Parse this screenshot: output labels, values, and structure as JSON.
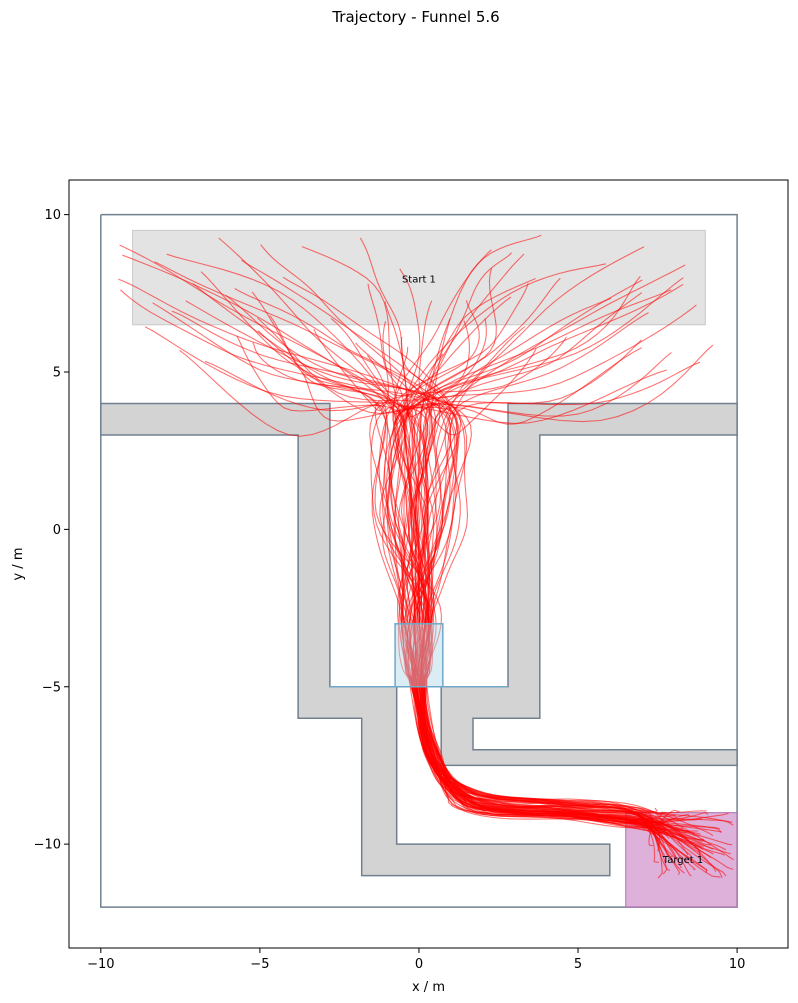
{
  "chart_data": {
    "type": "line",
    "title": "Trajectory - Funnel 5.6",
    "xlabel": "x / m",
    "ylabel": "y / m",
    "xlim": [
      -11.0,
      11.6
    ],
    "ylim": [
      -13.3,
      11.1
    ],
    "xticks": [
      -10,
      -5,
      0,
      5,
      10
    ],
    "yticks": [
      -10,
      -5,
      0,
      5,
      10
    ],
    "xtick_labels": [
      "−10",
      "−5",
      "0",
      "5",
      "10"
    ],
    "ytick_labels": [
      "−10",
      "−5",
      "0",
      "5",
      "10"
    ],
    "grid": false,
    "colors": {
      "walls": "#d3d3d3",
      "wall_edges": "#708090",
      "start_area": "#d9d9d9",
      "target_area": "#c77dc0",
      "funnel": "#add8e6",
      "funnel_edge": "#6fa8c8",
      "trajectories": "#ff0000",
      "outer_boundary": "#708090"
    },
    "outer_boundary": [
      [
        -10,
        10
      ],
      [
        10,
        10
      ],
      [
        10,
        -12
      ],
      [
        -10,
        -12
      ],
      [
        -10,
        10
      ]
    ],
    "walls": [
      [
        [
          -10,
          4
        ],
        [
          -2.8,
          4
        ],
        [
          -2.8,
          -5
        ],
        [
          -0.7,
          -5
        ],
        [
          -0.7,
          -10
        ],
        [
          6,
          -10
        ],
        [
          6,
          -11
        ],
        [
          -1.8,
          -11
        ],
        [
          -1.8,
          -6
        ],
        [
          -3.8,
          -6
        ],
        [
          -3.8,
          3
        ],
        [
          -10,
          3
        ]
      ],
      [
        [
          2.8,
          4
        ],
        [
          10,
          4
        ],
        [
          10,
          3
        ],
        [
          3.8,
          3
        ],
        [
          3.8,
          -6
        ],
        [
          1.7,
          -6
        ],
        [
          1.7,
          -7
        ],
        [
          10,
          -7
        ],
        [
          10,
          -7.5
        ],
        [
          0.7,
          -7.5
        ],
        [
          0.7,
          -5
        ],
        [
          2.8,
          -5
        ]
      ]
    ],
    "areas": [
      {
        "name": "Start 1",
        "x": [
          -9,
          9
        ],
        "y": [
          6.5,
          9.5
        ]
      },
      {
        "name": "Target 1",
        "x": [
          6.5,
          10
        ],
        "y": [
          -12,
          -9
        ]
      }
    ],
    "funnel": {
      "name": "Funnel 5.6",
      "x": [
        -0.75,
        0.75
      ],
      "y": [
        -5,
        -3
      ]
    },
    "trajectory_count": 75,
    "trajectory_waypoints": {
      "start_area_y": [
        6.5,
        9.5
      ],
      "entry": [
        [
          -0.8,
          3.5
        ],
        [
          0.8,
          3.5
        ]
      ],
      "funnel_exit": [
        0,
        -5
      ],
      "corridor_bend": [
        0.6,
        -8.6
      ],
      "corridor_y": -8.9,
      "target_center": [
        8.6,
        -10
      ]
    }
  }
}
